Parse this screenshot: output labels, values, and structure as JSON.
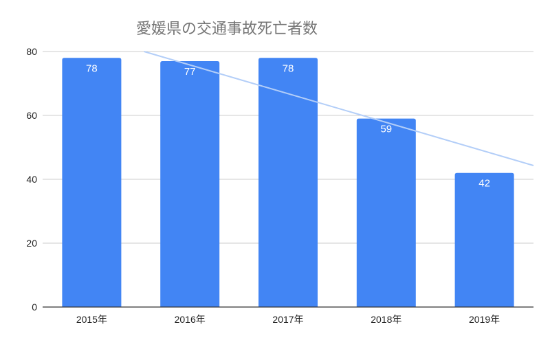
{
  "chart_data": {
    "type": "bar",
    "title": "愛媛県の交通事故死亡者数",
    "xlabel": "",
    "ylabel": "",
    "categories": [
      "2015年",
      "2016年",
      "2017年",
      "2018年",
      "2019年"
    ],
    "values": [
      78,
      77,
      78,
      59,
      42
    ],
    "ylim": [
      0,
      80
    ],
    "yticks": [
      "0",
      "20",
      "40",
      "60",
      "80"
    ],
    "ytick_values": [
      0,
      20,
      40,
      60,
      80
    ],
    "grid": true,
    "data_labels": true,
    "trendline": {
      "type": "linear",
      "shown": true,
      "color": "#b3cef8"
    },
    "colors": {
      "bar": "#4285f4",
      "grid": "#cccccc",
      "axis": "#333333",
      "title": "#757575",
      "data_label": "#ffffff"
    }
  }
}
